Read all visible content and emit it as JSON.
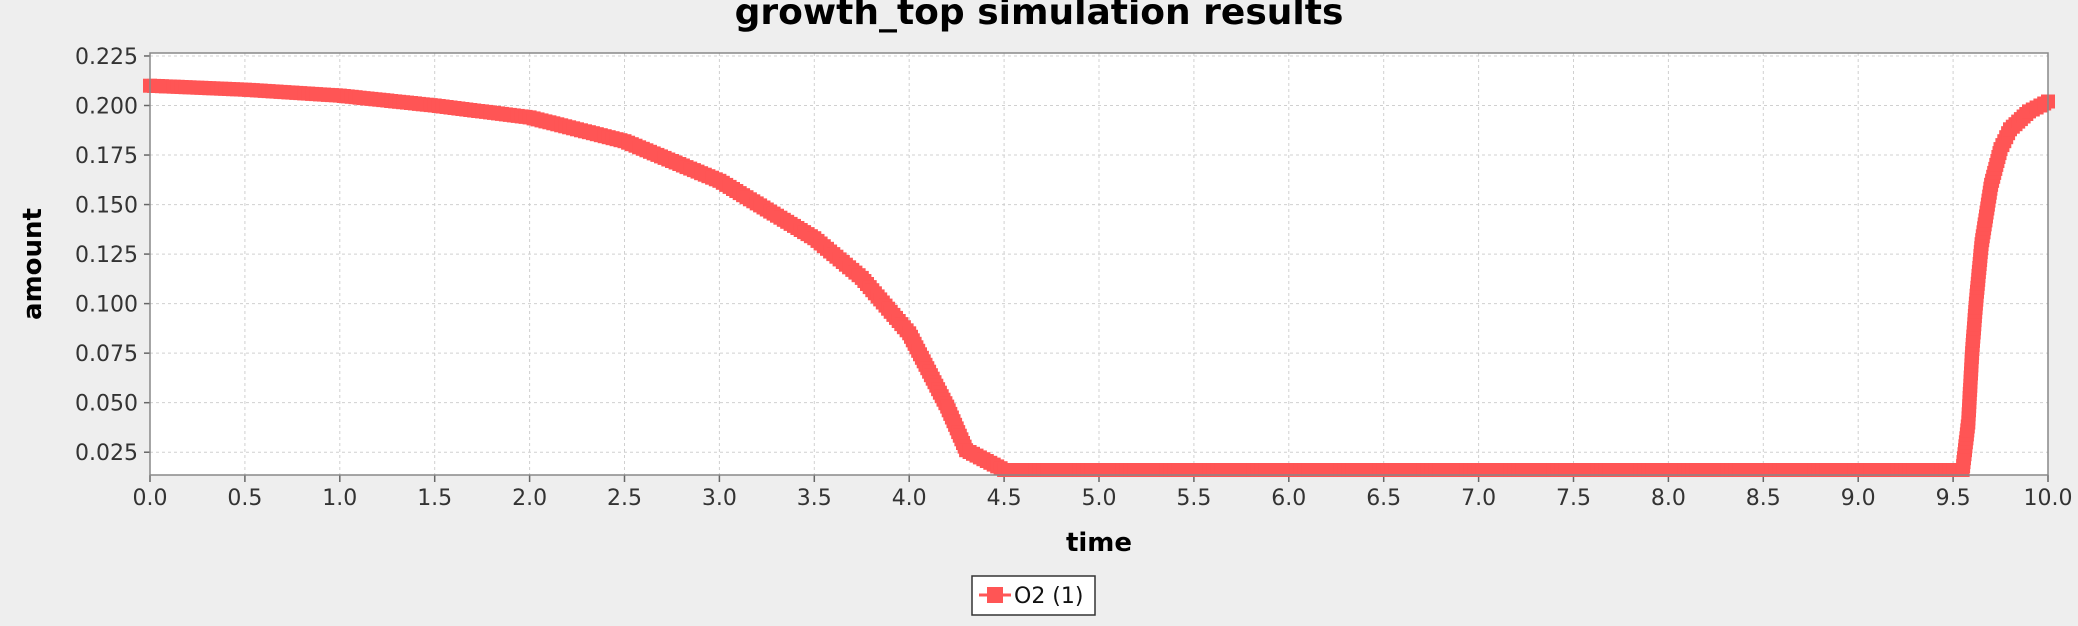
{
  "chart_data": {
    "type": "line",
    "title": "growth_top simulation results",
    "xlabel": "time",
    "ylabel": "amount",
    "xlim": [
      0.0,
      10.0
    ],
    "ylim": [
      0.0135,
      0.2265
    ],
    "x_ticks": [
      "0.0",
      "0.5",
      "1.0",
      "1.5",
      "2.0",
      "2.5",
      "3.0",
      "3.5",
      "4.0",
      "4.5",
      "5.0",
      "5.5",
      "6.0",
      "6.5",
      "7.0",
      "7.5",
      "8.0",
      "8.5",
      "9.0",
      "9.5",
      "10.0"
    ],
    "y_ticks": [
      "0.025",
      "0.050",
      "0.075",
      "0.100",
      "0.125",
      "0.150",
      "0.175",
      "0.200",
      "0.225"
    ],
    "grid": true,
    "legend_position": "bottom-center",
    "series_color": "#ff5555",
    "series": [
      {
        "name": "O2 (1)",
        "marker": "square",
        "x": [
          0.0,
          0.5,
          1.0,
          1.5,
          2.0,
          2.5,
          3.0,
          3.5,
          3.75,
          4.0,
          4.2,
          4.3,
          4.5,
          5.0,
          5.5,
          6.0,
          6.5,
          7.0,
          7.5,
          8.0,
          8.5,
          9.0,
          9.5,
          9.55,
          9.58,
          9.6,
          9.62,
          9.65,
          9.7,
          9.75,
          9.8,
          9.9,
          10.0
        ],
        "y": [
          0.21,
          0.208,
          0.205,
          0.2,
          0.194,
          0.182,
          0.162,
          0.133,
          0.113,
          0.085,
          0.048,
          0.026,
          0.016,
          0.016,
          0.016,
          0.016,
          0.016,
          0.016,
          0.016,
          0.016,
          0.016,
          0.016,
          0.016,
          0.016,
          0.04,
          0.075,
          0.1,
          0.13,
          0.16,
          0.178,
          0.188,
          0.197,
          0.202
        ]
      }
    ]
  }
}
